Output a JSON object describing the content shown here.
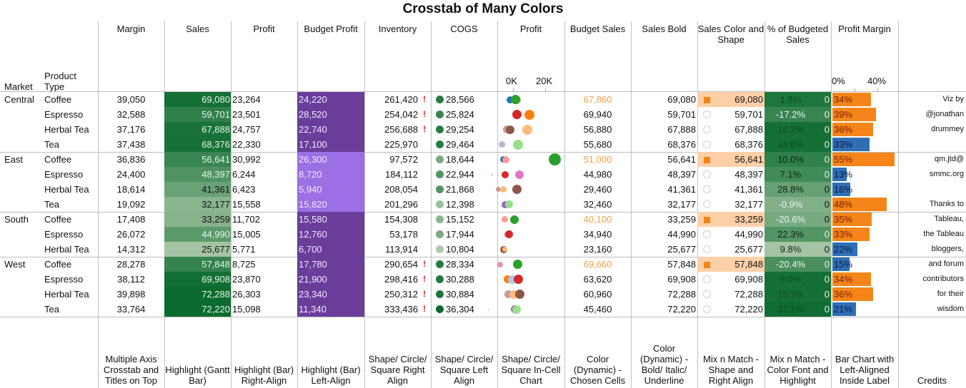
{
  "title": "Crosstab of Many Colors",
  "row_headers": {
    "market": "Market",
    "product_type": "Product Type"
  },
  "columns": [
    {
      "key": "margin",
      "label": "Margin",
      "footer": "Multiple Axis Crosstab and Titles on Top"
    },
    {
      "key": "sales",
      "label": "Sales",
      "footer": "Highlight (Gantt Bar)"
    },
    {
      "key": "profit",
      "label": "Profit",
      "footer": "Highlight (Bar) Right-Align"
    },
    {
      "key": "budget_profit",
      "label": "Budget Profit",
      "footer": "Highlight (Bar) Left-Align"
    },
    {
      "key": "inventory",
      "label": "Inventory",
      "footer": "Shape/ Circle/ Square Right Align"
    },
    {
      "key": "cogs",
      "label": "COGS",
      "footer": "Shape/ Circle/ Square Left Align"
    },
    {
      "key": "profit_chart",
      "label": "Profit",
      "footer": "Shape/ Circle/ Square In-Cell Chart"
    },
    {
      "key": "budget_sales",
      "label": "Budget Sales",
      "footer": "Color (Dynamic) - Chosen Cells"
    },
    {
      "key": "sales_bold",
      "label": "Sales Bold",
      "footer": "Color (Dynamic) - Bold/ Italic/ Underline"
    },
    {
      "key": "sales_color_shape",
      "label": "Sales Color and Shape",
      "footer": "Mix n Match - Shape and Right Align"
    },
    {
      "key": "pct_budgeted_sales",
      "label": "% of Budgeted Sales",
      "footer": "Mix n Match - Color Font and Highlight"
    },
    {
      "key": "profit_margin",
      "label": "Profit Margin",
      "footer": "Bar Chart with Left-Aligned Inside Label"
    },
    {
      "key": "credits",
      "label": "",
      "footer": "Credits"
    }
  ],
  "profit_axis": {
    "ticks": [
      "0K",
      "20K"
    ]
  },
  "profit_margin_axis": {
    "ticks": [
      "0%",
      "40%"
    ]
  },
  "colors": {
    "green_dark": "#0b6b2e",
    "purple_dark": "#6a3d9a",
    "purple_light": "#9c6fe4",
    "orange": "#f58518",
    "orange_light": "#ffd0a8",
    "blue": "#2f6fb5",
    "alert_red": "#d62728",
    "budget_highlight_text": "#f0a040"
  },
  "markets": [
    {
      "name": "Central",
      "rows": [
        {
          "product": "Coffee",
          "margin": "39,050",
          "sales": "69,080",
          "sales_shade": 0.95,
          "profit": "23,264",
          "budget_profit": "24,220",
          "inventory": "261,420",
          "inventory_alert": true,
          "cogs": "28,566",
          "cogs_shade": 0.85,
          "budget_sales": "67,860",
          "budget_highlight": true,
          "sales_bold": "69,080",
          "sales_color_shape": "69,080",
          "sales_flag": true,
          "pct_budgeted": "1.8%",
          "pct_shade": 0.9,
          "zero": "0",
          "profit_margin": "34%",
          "pm_value": 34,
          "pm_color": "orange",
          "credit": "Viz by"
        },
        {
          "product": "Espresso",
          "margin": "32,588",
          "sales": "59,701",
          "sales_shade": 0.8,
          "profit": "23,501",
          "budget_profit": "28,520",
          "inventory": "254,042",
          "inventory_alert": true,
          "cogs": "25,824",
          "cogs_shade": 0.75,
          "budget_sales": "69,940",
          "budget_highlight": false,
          "sales_bold": "59,701",
          "sales_color_shape": "59,701",
          "sales_flag": false,
          "pct_budgeted": "-17.2%",
          "pct_shade": 0.75,
          "zero": "0",
          "profit_margin": "39%",
          "pm_value": 39,
          "pm_color": "orange",
          "credit": "@jonathan"
        },
        {
          "product": "Herbal Tea",
          "margin": "37,176",
          "sales": "67,888",
          "sales_shade": 0.92,
          "profit": "24,757",
          "budget_profit": "22,740",
          "inventory": "256,688",
          "inventory_alert": true,
          "cogs": "29,254",
          "cogs_shade": 0.85,
          "budget_sales": "56,880",
          "budget_highlight": false,
          "sales_bold": "67,888",
          "sales_color_shape": "67,888",
          "sales_flag": false,
          "pct_budgeted": "16.2%",
          "pct_shade": 0.95,
          "zero": "0",
          "profit_margin": "36%",
          "pm_value": 36,
          "pm_color": "orange",
          "credit": "drummey"
        },
        {
          "product": "Tea",
          "margin": "37,438",
          "sales": "68,376",
          "sales_shade": 0.93,
          "profit": "22,330",
          "budget_profit": "17,100",
          "inventory": "225,970",
          "inventory_alert": false,
          "cogs": "29,464",
          "cogs_shade": 0.85,
          "budget_sales": "55,680",
          "budget_highlight": false,
          "sales_bold": "68,376",
          "sales_color_shape": "68,376",
          "sales_flag": false,
          "pct_budgeted": "18.6%",
          "pct_shade": 0.95,
          "zero": "0",
          "profit_margin": "33%",
          "pm_value": 33,
          "pm_color": "blue",
          "credit": ""
        }
      ]
    },
    {
      "name": "East",
      "rows": [
        {
          "product": "Coffee",
          "margin": "36,836",
          "sales": "56,641",
          "sales_shade": 0.75,
          "profit": "30,992",
          "budget_profit": "26,300",
          "inventory": "97,572",
          "inventory_alert": false,
          "cogs": "18,644",
          "cogs_shade": 0.4,
          "budget_sales": "51,000",
          "budget_highlight": true,
          "sales_bold": "56,641",
          "sales_color_shape": "56,641",
          "sales_flag": true,
          "pct_budgeted": "10.0%",
          "pct_shade": 0.8,
          "zero": "0",
          "profit_margin": "55%",
          "pm_value": 55,
          "pm_color": "orange",
          "credit": "qm.jtd@"
        },
        {
          "product": "Espresso",
          "margin": "24,400",
          "sales": "48,397",
          "sales_shade": 0.62,
          "profit": "6,244",
          "budget_profit": "8,720",
          "inventory": "184,112",
          "inventory_alert": false,
          "cogs": "22,944",
          "cogs_shade": 0.6,
          "budget_sales": "44,980",
          "budget_highlight": false,
          "sales_bold": "48,397",
          "sales_color_shape": "48,397",
          "sales_flag": false,
          "pct_budgeted": "7.1%",
          "pct_shade": 0.7,
          "zero": "0",
          "profit_margin": "13%",
          "pm_value": 13,
          "pm_color": "blue",
          "credit": "smmc.org"
        },
        {
          "product": "Herbal Tea",
          "margin": "18,614",
          "sales": "41,361",
          "sales_shade": 0.48,
          "profit": "6,423",
          "budget_profit": "5,940",
          "inventory": "208,054",
          "inventory_alert": false,
          "cogs": "21,868",
          "cogs_shade": 0.6,
          "budget_sales": "29,460",
          "budget_highlight": false,
          "sales_bold": "41,361",
          "sales_color_shape": "41,361",
          "sales_flag": false,
          "pct_budgeted": "28.8%",
          "pct_shade": 0.5,
          "zero": "0",
          "profit_margin": "16%",
          "pm_value": 16,
          "pm_color": "blue",
          "credit": ""
        },
        {
          "product": "Tea",
          "margin": "19,092",
          "sales": "32,177",
          "sales_shade": 0.3,
          "profit": "15,558",
          "budget_profit": "15,820",
          "inventory": "201,296",
          "inventory_alert": false,
          "cogs": "12,398",
          "cogs_shade": 0.2,
          "budget_sales": "32,460",
          "budget_highlight": false,
          "sales_bold": "32,177",
          "sales_color_shape": "32,177",
          "sales_flag": false,
          "pct_budgeted": "-0.9%",
          "pct_shade": 0.35,
          "zero": "0",
          "profit_margin": "48%",
          "pm_value": 48,
          "pm_color": "orange",
          "credit": "Thanks to"
        }
      ]
    },
    {
      "name": "South",
      "rows": [
        {
          "product": "Coffee",
          "margin": "17,408",
          "sales": "33,259",
          "sales_shade": 0.32,
          "profit": "11,702",
          "budget_profit": "15,580",
          "inventory": "154,308",
          "inventory_alert": false,
          "cogs": "15,152",
          "cogs_shade": 0.3,
          "budget_sales": "40,100",
          "budget_highlight": true,
          "sales_bold": "33,259",
          "sales_color_shape": "33,259",
          "sales_flag": true,
          "pct_budgeted": "-20.6%",
          "pct_shade": 0.4,
          "zero": "0",
          "profit_margin": "35%",
          "pm_value": 35,
          "pm_color": "orange",
          "credit": "Tableau,"
        },
        {
          "product": "Espresso",
          "margin": "26,072",
          "sales": "44,990",
          "sales_shade": 0.55,
          "profit": "15,005",
          "budget_profit": "12,760",
          "inventory": "53,178",
          "inventory_alert": false,
          "cogs": "17,944",
          "cogs_shade": 0.4,
          "budget_sales": "34,940",
          "budget_highlight": false,
          "sales_bold": "44,990",
          "sales_color_shape": "44,990",
          "sales_flag": false,
          "pct_budgeted": "22.3%",
          "pct_shade": 0.6,
          "zero": "0",
          "profit_margin": "33%",
          "pm_value": 33,
          "pm_color": "orange",
          "credit": "the Tableau"
        },
        {
          "product": "Herbal Tea",
          "margin": "14,312",
          "sales": "25,677",
          "sales_shade": 0.15,
          "profit": "5,771",
          "budget_profit": "6,700",
          "inventory": "113,914",
          "inventory_alert": false,
          "cogs": "10,804",
          "cogs_shade": 0.1,
          "budget_sales": "23,160",
          "budget_highlight": false,
          "sales_bold": "25,677",
          "sales_color_shape": "25,677",
          "sales_flag": false,
          "pct_budgeted": "9.8%",
          "pct_shade": 0.15,
          "zero": "0",
          "profit_margin": "22%",
          "pm_value": 22,
          "pm_color": "blue",
          "credit": "bloggers,"
        }
      ]
    },
    {
      "name": "West",
      "rows": [
        {
          "product": "Coffee",
          "margin": "28,278",
          "sales": "57,848",
          "sales_shade": 0.77,
          "profit": "8,725",
          "budget_profit": "17,780",
          "inventory": "290,654",
          "inventory_alert": true,
          "cogs": "28,334",
          "cogs_shade": 0.85,
          "budget_sales": "69,660",
          "budget_highlight": true,
          "sales_bold": "57,848",
          "sales_color_shape": "57,848",
          "sales_flag": true,
          "pct_budgeted": "-20.4%",
          "pct_shade": 0.65,
          "zero": "0",
          "profit_margin": "15%",
          "pm_value": 15,
          "pm_color": "blue",
          "credit": "and forum"
        },
        {
          "product": "Espresso",
          "margin": "38,112",
          "sales": "69,908",
          "sales_shade": 0.96,
          "profit": "23,870",
          "budget_profit": "21,900",
          "inventory": "298,416",
          "inventory_alert": true,
          "cogs": "30,288",
          "cogs_shade": 0.88,
          "budget_sales": "63,620",
          "budget_highlight": false,
          "sales_bold": "69,908",
          "sales_color_shape": "69,908",
          "sales_flag": false,
          "pct_budgeted": "9.0%",
          "pct_shade": 0.95,
          "zero": "0",
          "profit_margin": "34%",
          "pm_value": 34,
          "pm_color": "orange",
          "credit": "contributors"
        },
        {
          "product": "Herbal Tea",
          "margin": "39,898",
          "sales": "72,288",
          "sales_shade": 1.0,
          "profit": "26,303",
          "budget_profit": "23,340",
          "inventory": "250,312",
          "inventory_alert": true,
          "cogs": "30,884",
          "cogs_shade": 0.9,
          "budget_sales": "60,960",
          "budget_highlight": false,
          "sales_bold": "72,288",
          "sales_color_shape": "72,288",
          "sales_flag": false,
          "pct_budgeted": "15.7%",
          "pct_shade": 0.95,
          "zero": "0",
          "profit_margin": "36%",
          "pm_value": 36,
          "pm_color": "orange",
          "credit": "for their"
        },
        {
          "product": "Tea",
          "margin": "33,764",
          "sales": "72,220",
          "sales_shade": 1.0,
          "profit": "15,098",
          "budget_profit": "11,340",
          "inventory": "333,436",
          "inventory_alert": true,
          "cogs": "36,304",
          "cogs_shade": 1.0,
          "budget_sales": "45,460",
          "budget_highlight": false,
          "sales_bold": "72,220",
          "sales_color_shape": "72,220",
          "sales_flag": false,
          "pct_budgeted": "37.1%",
          "pct_shade": 0.98,
          "zero": "0",
          "profit_margin": "21%",
          "pm_value": 21,
          "pm_color": "blue",
          "credit": "wisdom"
        }
      ]
    }
  ],
  "profit_dots": [
    [
      {
        "v": -2,
        "c": "#1f77b4",
        "s": 10
      },
      {
        "v": 2,
        "c": "#c5b08a",
        "s": 12
      },
      {
        "v": 1.5,
        "c": "#2ca02c",
        "s": 13
      }
    ],
    [
      {
        "v": 2.5,
        "c": "#d62728",
        "s": 13
      },
      {
        "v": 10,
        "c": "#ff7f0e",
        "s": 14
      }
    ],
    [
      {
        "v": -4,
        "c": "#c49c94",
        "s": 11
      },
      {
        "v": -2,
        "c": "#8c564b",
        "s": 12
      },
      {
        "v": 9,
        "c": "#ffbb78",
        "s": 14
      }
    ],
    [
      {
        "v": -7,
        "c": "#c5b0d5",
        "s": 9
      },
      {
        "v": 3,
        "c": "#98df8a",
        "s": 14
      }
    ],
    [
      {
        "v": -6,
        "c": "#1f77b4",
        "s": 9
      },
      {
        "v": -4.5,
        "c": "#ff9896",
        "s": 10
      },
      {
        "v": 26,
        "c": "#2ca02c",
        "s": 17
      }
    ],
    [
      {
        "v": -13,
        "c": "#e377c2",
        "s": 2
      },
      {
        "v": -5,
        "c": "#d62728",
        "s": 10
      },
      {
        "v": 4,
        "c": "#e377c2",
        "s": 12
      }
    ],
    [
      {
        "v": -9,
        "c": "#c49c94",
        "s": 7
      },
      {
        "v": -6,
        "c": "#ffbb78",
        "s": 9
      },
      {
        "v": 2.5,
        "c": "#8c564b",
        "s": 13
      }
    ],
    [
      {
        "v": -5,
        "c": "#9467bd",
        "s": 10
      },
      {
        "v": -2.5,
        "c": "#98df8a",
        "s": 11
      }
    ],
    [
      {
        "v": -5,
        "c": "#ff9896",
        "s": 9
      },
      {
        "v": 1,
        "c": "#2ca02c",
        "s": 12
      }
    ],
    [
      {
        "v": -4,
        "c": "#c7c7c7",
        "s": 8
      },
      {
        "v": -2.5,
        "c": "#d62728",
        "s": 11
      }
    ],
    [
      {
        "v": -6,
        "c": "#8c564b",
        "s": 10
      },
      {
        "v": -5,
        "c": "#ffbb78",
        "s": 7
      }
    ],
    [
      {
        "v": -8,
        "c": "#e7969c",
        "s": 8
      },
      {
        "v": 3,
        "c": "#2ca02c",
        "s": 13
      }
    ],
    [
      {
        "v": -3.5,
        "c": "#ff7f0e",
        "s": 11
      },
      {
        "v": -0.5,
        "c": "#aec7e8",
        "s": 12
      },
      {
        "v": 3.5,
        "c": "#d62728",
        "s": 13
      }
    ],
    [
      {
        "v": -3,
        "c": "#c49c94",
        "s": 11
      },
      {
        "v": 0.5,
        "c": "#ffbb78",
        "s": 12
      },
      {
        "v": 4,
        "c": "#8c564b",
        "s": 13
      }
    ],
    [
      {
        "v": -15,
        "c": "#c7c7c7",
        "s": 2
      },
      {
        "v": 1,
        "c": "#9467bd",
        "s": 11
      },
      {
        "v": 2,
        "c": "#98df8a",
        "s": 12
      }
    ]
  ]
}
